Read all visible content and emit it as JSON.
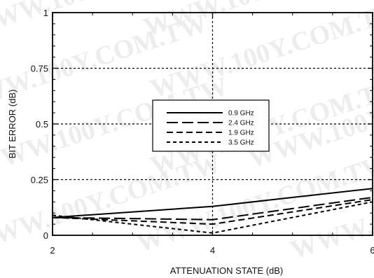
{
  "chart_data": {
    "type": "line",
    "x": [
      2,
      4,
      6
    ],
    "xlim": [
      2,
      6
    ],
    "ylim": [
      0,
      1
    ],
    "xticks": [
      2,
      4,
      6
    ],
    "yticks": [
      0,
      0.25,
      0.5,
      0.75,
      1
    ],
    "xtick_labels": [
      "2",
      "4",
      "6"
    ],
    "ytick_labels": [
      "0",
      "0.25",
      "0.5",
      "0.75",
      "1"
    ],
    "xlabel": "ATTENUATION STATE (dB)",
    "ylabel": "BIT ERROR (dB)",
    "grid": true,
    "legend_position": "center",
    "series": [
      {
        "name": "0.9 GHz",
        "values": [
          0.08,
          0.13,
          0.21
        ],
        "dash": "solid"
      },
      {
        "name": "2.4 GHz",
        "values": [
          0.08,
          0.07,
          0.17
        ],
        "dash": "long-dash"
      },
      {
        "name": "1.9 GHz",
        "values": [
          0.08,
          0.05,
          0.16
        ],
        "dash": "dash"
      },
      {
        "name": "3.5 GHz",
        "values": [
          0.09,
          0.01,
          0.15
        ],
        "dash": "short-dash"
      }
    ]
  },
  "watermark": {
    "text": "WWW.100Y.COM.TW"
  }
}
